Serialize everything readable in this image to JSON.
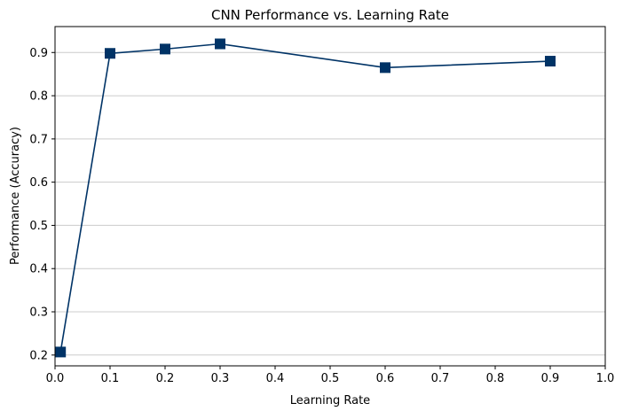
{
  "chart_data": {
    "type": "line",
    "title": "CNN Performance vs. Learning Rate",
    "xlabel": "Learning Rate",
    "ylabel": "Performance (Accuracy)",
    "xlim": [
      0.0,
      1.0
    ],
    "ylim": [
      0.175,
      0.96
    ],
    "xticks": [
      0.0,
      0.1,
      0.2,
      0.3,
      0.4,
      0.5,
      0.6,
      0.7,
      0.8,
      0.9,
      1.0
    ],
    "xtick_labels": [
      "0.0",
      "0.1",
      "0.2",
      "0.3",
      "0.4",
      "0.5",
      "0.6",
      "0.7",
      "0.8",
      "0.9",
      "1.0"
    ],
    "yticks": [
      0.2,
      0.3,
      0.4,
      0.5,
      0.6,
      0.7,
      0.8,
      0.9
    ],
    "ytick_labels": [
      "0.2",
      "0.3",
      "0.4",
      "0.5",
      "0.6",
      "0.7",
      "0.8",
      "0.9"
    ],
    "grid": "horizontal",
    "legend": "none",
    "series": [
      {
        "x": [
          0.01,
          0.1,
          0.2,
          0.3,
          0.6,
          0.9
        ],
        "y": [
          0.207,
          0.898,
          0.908,
          0.92,
          0.865,
          0.88
        ],
        "color": "#003366",
        "marker": "square"
      }
    ]
  }
}
